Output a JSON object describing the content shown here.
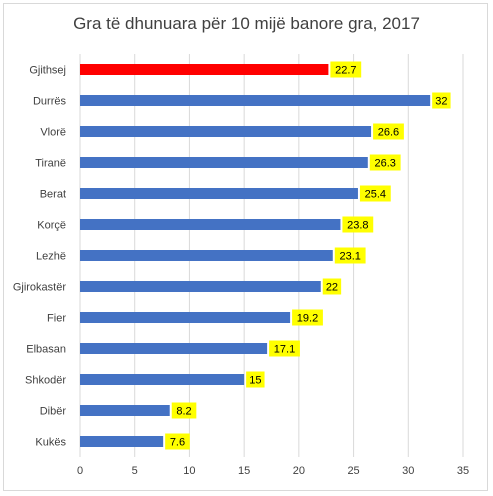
{
  "chart_data": {
    "type": "bar",
    "orientation": "horizontal",
    "title": "Gra të dhunuara për 10 mijë banore gra, 2017",
    "categories": [
      "Gjithsej",
      "Durrës",
      "Vlorë",
      "Tiranë",
      "Berat",
      "Korçë",
      "Lezhë",
      "Gjirokastër",
      "Fier",
      "Elbasan",
      "Shkodër",
      "Dibër",
      "Kukës"
    ],
    "values": [
      22.7,
      32,
      26.6,
      26.3,
      25.4,
      23.8,
      23.1,
      22,
      19.2,
      17.1,
      15,
      8.2,
      7.6
    ],
    "value_labels": [
      "22.7",
      "32",
      "26.6",
      "26.3",
      "25.4",
      "23.8",
      "23.1",
      "22",
      "19.2",
      "17.1",
      "15",
      "8.2",
      "7.6"
    ],
    "xlim": [
      0,
      35
    ],
    "xticks": [
      "0",
      "5",
      "10",
      "15",
      "20",
      "25",
      "30",
      "35"
    ],
    "grid": true,
    "colors": {
      "highlight_bar": "#ff0000",
      "bar": "#4472c4",
      "label_background": "#ffff00",
      "grid": "#d9d9d9"
    }
  }
}
